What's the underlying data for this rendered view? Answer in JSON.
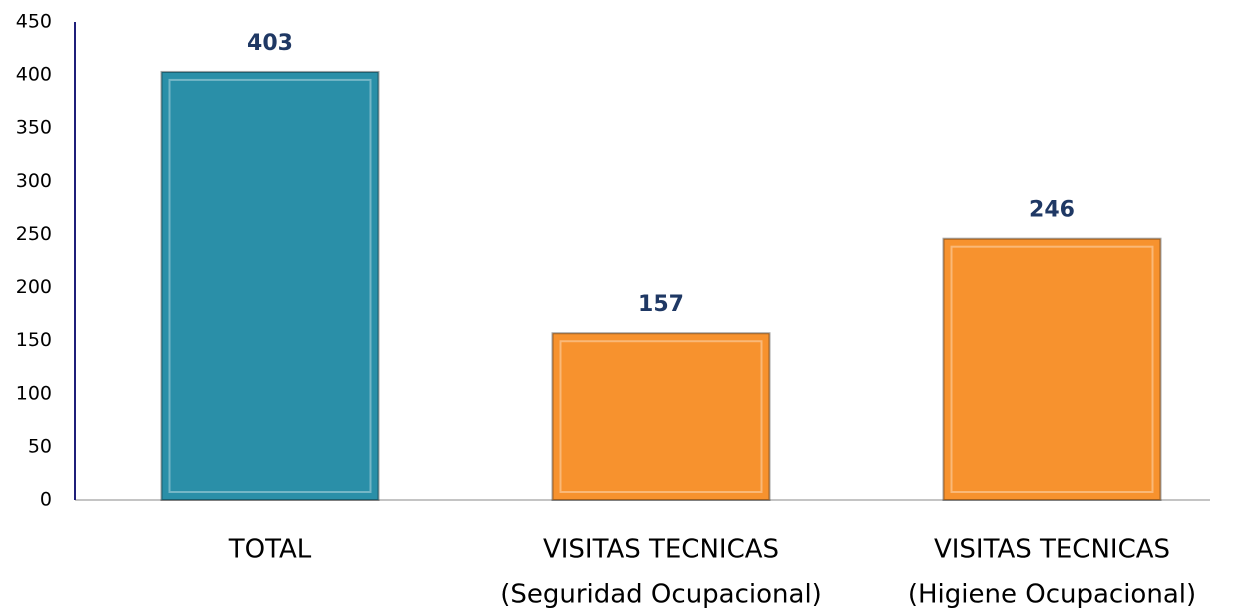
{
  "chart_data": {
    "type": "bar",
    "categories": [
      [
        "TOTAL"
      ],
      [
        "VISITAS TECNICAS",
        "(Seguridad Ocupacional)"
      ],
      [
        "VISITAS TECNICAS",
        "(Higiene Ocupacional)"
      ]
    ],
    "values": [
      403,
      157,
      246
    ],
    "colors": [
      "#2a8fa8",
      "#f7922e",
      "#f7922e"
    ],
    "ylim": [
      0,
      450
    ],
    "yticks": [
      0,
      50,
      100,
      150,
      200,
      250,
      300,
      350,
      400,
      450
    ],
    "grid": false
  }
}
